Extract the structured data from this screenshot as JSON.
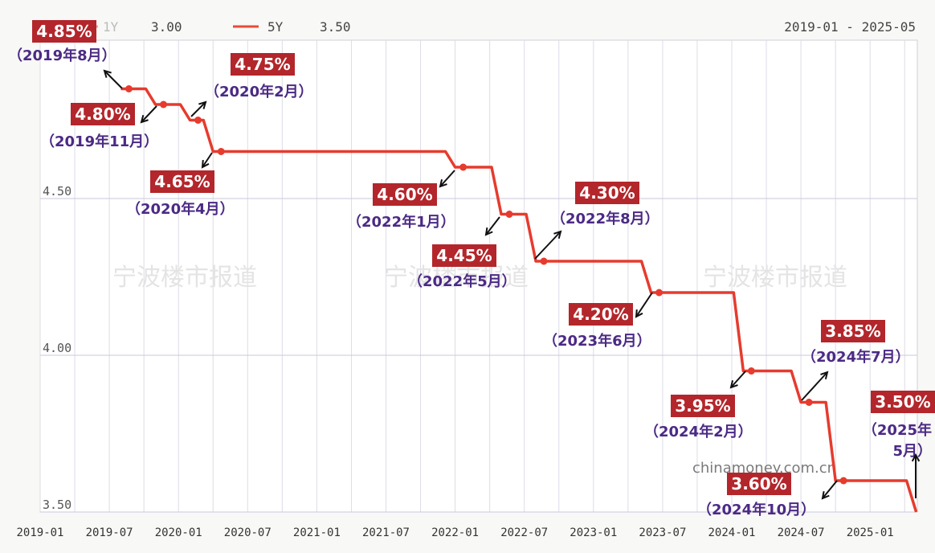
{
  "chart_data": {
    "type": "line",
    "date_range": "2019-01 - 2025-05",
    "legend": [
      {
        "name": "1Y",
        "value": "3.00",
        "color": "#e8a29e"
      },
      {
        "name": "5Y",
        "value": "3.50",
        "color": "#e84a3a"
      }
    ],
    "x_ticks": [
      "2019-01",
      "2019-07",
      "2020-01",
      "2020-07",
      "2021-01",
      "2021-07",
      "2022-01",
      "2022-07",
      "2023-01",
      "2023-07",
      "2024-01",
      "2024-07",
      "2025-01"
    ],
    "y_ticks": [
      "4.50",
      "4.00",
      "3.50"
    ],
    "ylim": [
      3.5,
      5.0
    ],
    "grid": true,
    "series": [
      {
        "name": "5Y",
        "color": "#e63b2e",
        "points": [
          {
            "x": "2019-08",
            "y": 4.85
          },
          {
            "x": "2019-11",
            "y": 4.8
          },
          {
            "x": "2020-02",
            "y": 4.75
          },
          {
            "x": "2020-04",
            "y": 4.65
          },
          {
            "x": "2022-01",
            "y": 4.6
          },
          {
            "x": "2022-05",
            "y": 4.45
          },
          {
            "x": "2022-08",
            "y": 4.3
          },
          {
            "x": "2023-06",
            "y": 4.2
          },
          {
            "x": "2024-02",
            "y": 3.95
          },
          {
            "x": "2024-07",
            "y": 3.85
          },
          {
            "x": "2024-10",
            "y": 3.6
          },
          {
            "x": "2025-05",
            "y": 3.5
          }
        ]
      }
    ],
    "annotations": [
      {
        "rate": "4.85%",
        "date": "（2019年8月）"
      },
      {
        "rate": "4.80%",
        "date": "（2019年11月）"
      },
      {
        "rate": "4.75%",
        "date": "（2020年2月）"
      },
      {
        "rate": "4.65%",
        "date": "（2020年4月）"
      },
      {
        "rate": "4.60%",
        "date": "（2022年1月）"
      },
      {
        "rate": "4.45%",
        "date": "（2022年5月）"
      },
      {
        "rate": "4.30%",
        "date": "（2022年8月）"
      },
      {
        "rate": "4.20%",
        "date": "（2023年6月）"
      },
      {
        "rate": "3.95%",
        "date": "（2024年2月）"
      },
      {
        "rate": "3.85%",
        "date": "（2024年7月）"
      },
      {
        "rate": "3.60%",
        "date": "（2024年10月）"
      },
      {
        "rate": "3.50%",
        "date_lines": [
          "（2025年",
          "5月）"
        ]
      }
    ],
    "watermark": "宁波楼市报道",
    "source": "chinamoney.com.cn"
  }
}
